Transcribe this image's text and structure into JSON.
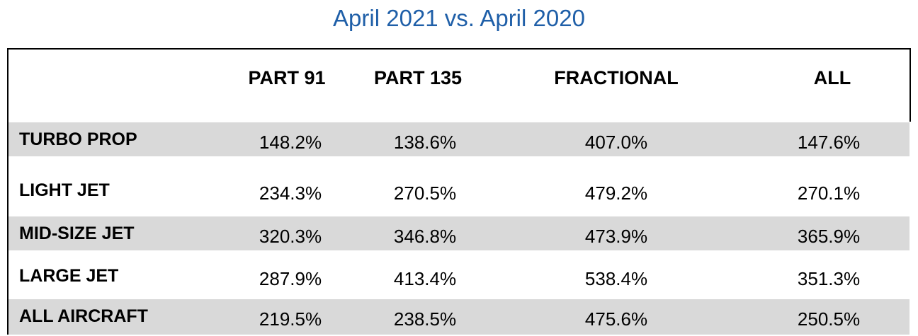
{
  "title": "April 2021 vs. April 2020",
  "chart_data": {
    "type": "table",
    "title": "April 2021 vs. April 2020",
    "columns": [
      "PART 91",
      "PART 135",
      "FRACTIONAL",
      "ALL"
    ],
    "rows": [
      {
        "label": "TURBO PROP",
        "values": [
          "148.2%",
          "138.6%",
          "407.0%",
          "147.6%"
        ]
      },
      {
        "label": "LIGHT JET",
        "values": [
          "234.3%",
          "270.5%",
          "479.2%",
          "270.1%"
        ]
      },
      {
        "label": "MID-SIZE JET",
        "values": [
          "320.3%",
          "346.8%",
          "473.9%",
          "365.9%"
        ]
      },
      {
        "label": "LARGE JET",
        "values": [
          "287.9%",
          "413.4%",
          "538.4%",
          "351.3%"
        ]
      },
      {
        "label": "ALL AIRCRAFT",
        "values": [
          "219.5%",
          "238.5%",
          "475.6%",
          "250.5%"
        ]
      }
    ]
  },
  "colors": {
    "title": "#1f5fa8",
    "shaded_row": "#d9d9d9",
    "border": "#000000"
  }
}
